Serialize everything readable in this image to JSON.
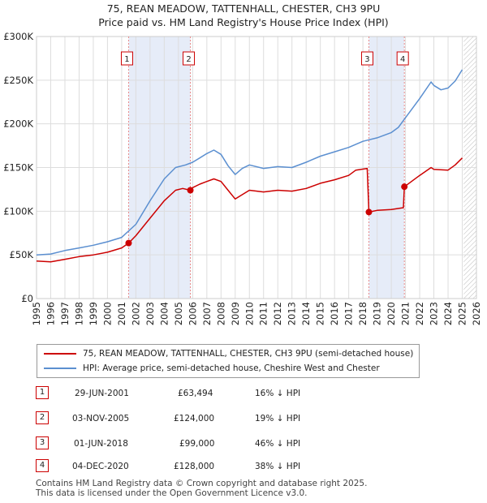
{
  "title_line1": "75, REAN MEADOW, TATTENHALL, CHESTER, CH3 9PU",
  "title_line2": "Price paid vs. HM Land Registry's House Price Index (HPI)",
  "colors": {
    "property": "#cc0000",
    "hpi": "#5b8fd0",
    "shade": "#e6ecf8",
    "vline": "#e88a8a",
    "grid": "#dddddd"
  },
  "chart_data": {
    "type": "line",
    "title": "Price paid vs. HM Land Registry's House Price Index (HPI)",
    "xlim": [
      1995,
      2026
    ],
    "ylim": [
      0,
      300000
    ],
    "y_ticks": [
      0,
      50000,
      100000,
      150000,
      200000,
      250000,
      300000
    ],
    "y_tick_labels": [
      "£0",
      "£50K",
      "£100K",
      "£150K",
      "£200K",
      "£250K",
      "£300K"
    ],
    "x_ticks": [
      "1995",
      "1996",
      "1997",
      "1998",
      "1999",
      "2000",
      "2001",
      "2002",
      "2003",
      "2004",
      "2005",
      "2006",
      "2007",
      "2008",
      "2009",
      "2010",
      "2011",
      "2012",
      "2013",
      "2014",
      "2015",
      "2016",
      "2017",
      "2018",
      "2019",
      "2020",
      "2021",
      "2022",
      "2023",
      "2024",
      "2025",
      "2026"
    ],
    "shaded_ranges": [
      [
        2001.49,
        2005.84
      ],
      [
        2018.42,
        2020.92
      ]
    ],
    "series": [
      {
        "name": "75, REAN MEADOW, TATTENHALL, CHESTER, CH3 9PU (semi-detached house)",
        "x": [
          1995,
          1996,
          1997,
          1998,
          1999,
          2000,
          2001,
          2001.49,
          2002,
          2003,
          2004,
          2004.8,
          2005.3,
          2005.84,
          2006,
          2006.5,
          2007,
          2007.5,
          2008,
          2008.5,
          2009,
          2009.5,
          2010,
          2011,
          2012,
          2013,
          2014,
          2015,
          2016,
          2017,
          2017.5,
          2018.3,
          2018.42,
          2019,
          2020,
          2020.85,
          2020.92,
          2021.5,
          2022,
          2022.8,
          2023,
          2024,
          2024.5,
          2025
        ],
        "values": [
          43000,
          42000,
          45000,
          48000,
          50000,
          53000,
          58000,
          63494,
          72000,
          92000,
          112000,
          124000,
          126000,
          124000,
          127000,
          131000,
          134000,
          137000,
          134000,
          124000,
          114000,
          119000,
          124000,
          122000,
          124000,
          123000,
          126000,
          132000,
          136000,
          141000,
          147000,
          149000,
          99000,
          101000,
          102000,
          104000,
          128000,
          135000,
          141000,
          150000,
          148000,
          147000,
          153000,
          161000
        ]
      },
      {
        "name": "HPI: Average price, semi-detached house, Cheshire West and Chester",
        "x": [
          1995,
          1996,
          1997,
          1998,
          1999,
          2000,
          2001,
          2002,
          2003,
          2004,
          2004.8,
          2005.5,
          2006,
          2006.5,
          2007,
          2007.5,
          2008,
          2008.5,
          2009,
          2009.5,
          2010,
          2011,
          2012,
          2013,
          2014,
          2015,
          2016,
          2017,
          2018,
          2019,
          2020,
          2020.5,
          2021,
          2021.5,
          2022,
          2022.8,
          2023,
          2023.5,
          2024,
          2024.5,
          2025
        ],
        "values": [
          50000,
          51000,
          55000,
          58000,
          61000,
          65000,
          70000,
          85000,
          112000,
          137000,
          150000,
          153000,
          156000,
          161000,
          166000,
          170000,
          165000,
          152000,
          142000,
          149000,
          153000,
          149000,
          151000,
          150000,
          156000,
          163000,
          168000,
          173000,
          180000,
          184000,
          190000,
          196000,
          207000,
          218000,
          229000,
          248000,
          244000,
          239000,
          241000,
          249000,
          262000
        ]
      }
    ],
    "markers": [
      {
        "label": "1",
        "x": 2001.49,
        "y": 63494
      },
      {
        "label": "2",
        "x": 2005.84,
        "y": 124000
      },
      {
        "label": "3",
        "x": 2018.42,
        "y": 99000
      },
      {
        "label": "4",
        "x": 2020.92,
        "y": 128000
      }
    ]
  },
  "legend": {
    "property_label": "75, REAN MEADOW, TATTENHALL, CHESTER, CH3 9PU (semi-detached house)",
    "hpi_label": "HPI: Average price, semi-detached house, Cheshire West and Chester"
  },
  "transactions": [
    {
      "num": "1",
      "date": "29-JUN-2001",
      "price": "£63,494",
      "pct": "16% ↓ HPI"
    },
    {
      "num": "2",
      "date": "03-NOV-2005",
      "price": "£124,000",
      "pct": "19% ↓ HPI"
    },
    {
      "num": "3",
      "date": "01-JUN-2018",
      "price": "£99,000",
      "pct": "46% ↓ HPI"
    },
    {
      "num": "4",
      "date": "04-DEC-2020",
      "price": "£128,000",
      "pct": "38% ↓ HPI"
    }
  ],
  "footer_line1": "Contains HM Land Registry data © Crown copyright and database right 2025.",
  "footer_line2": "This data is licensed under the Open Government Licence v3.0."
}
